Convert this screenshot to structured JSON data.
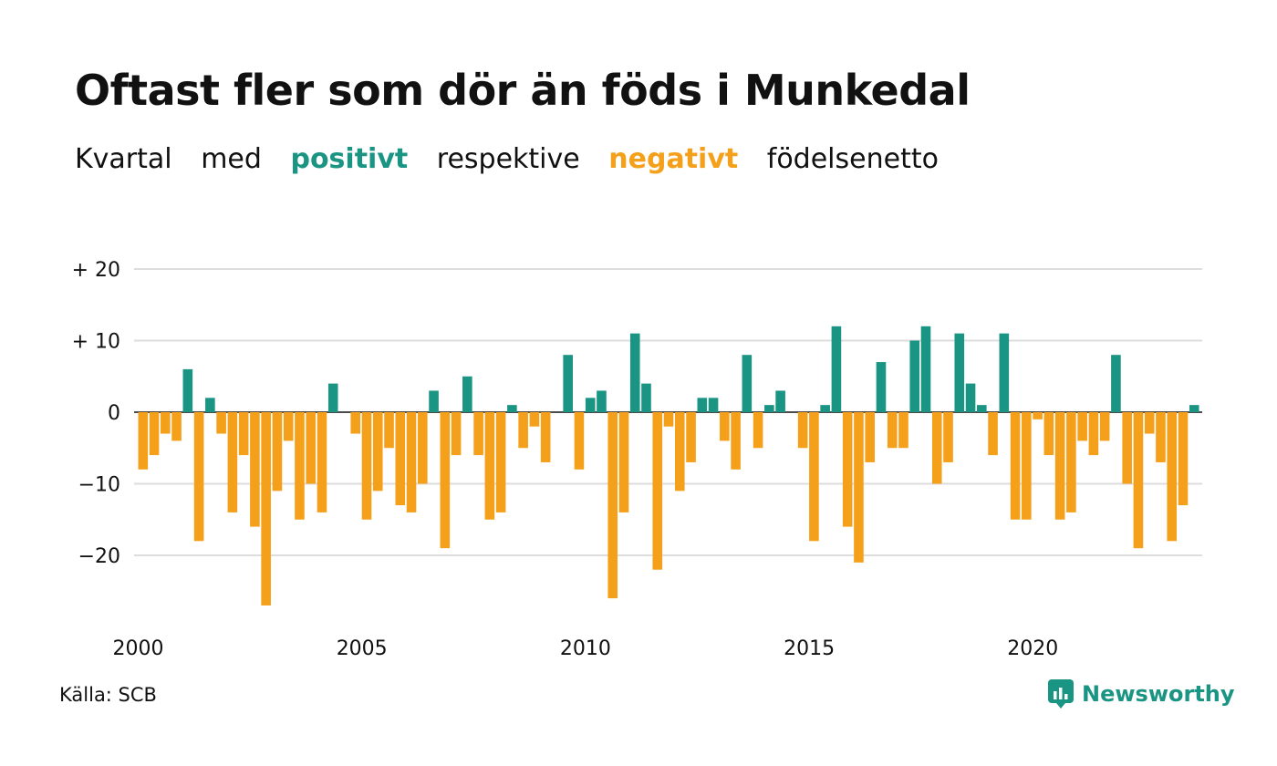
{
  "title": "Oftast fler som dör än föds i Munkedal",
  "subtitle": {
    "part1": "Kvartal",
    "part2": "med",
    "positive": "positivt",
    "part3": "respektive",
    "negative": "negativt",
    "part4": "födelsenetto"
  },
  "colors": {
    "positive": "#1a9483",
    "negative": "#f5a01a",
    "grid": "#dddddd",
    "zero": "#111111"
  },
  "chart_data": {
    "type": "bar",
    "x_start_year": 2000,
    "x_start_quarter": 1,
    "values": [
      -8,
      -6,
      -3,
      -4,
      6,
      -18,
      2,
      -3,
      -14,
      -6,
      -16,
      -27,
      -11,
      -4,
      -15,
      -10,
      -14,
      4,
      0,
      -3,
      -15,
      -11,
      -5,
      -13,
      -14,
      -10,
      3,
      -19,
      -6,
      5,
      -6,
      -15,
      -14,
      1,
      -5,
      -2,
      -7,
      0,
      8,
      -8,
      2,
      3,
      -26,
      -14,
      11,
      4,
      -22,
      -2,
      -11,
      -7,
      2,
      2,
      -4,
      -8,
      8,
      -5,
      1,
      3,
      0,
      -5,
      -18,
      1,
      12,
      -16,
      -21,
      -7,
      7,
      -5,
      -5,
      10,
      12,
      -10,
      -7,
      11,
      4,
      1,
      -6,
      11,
      -15,
      -15,
      -1,
      -6,
      -15,
      -14,
      -4,
      -6,
      -4,
      8,
      -10,
      -19,
      -3,
      -7,
      -18,
      -13,
      1
    ],
    "yticks": [
      20,
      10,
      0,
      -10,
      -20
    ],
    "ytick_labels": [
      "+ 20",
      "+ 10",
      "0",
      "−10",
      "−20"
    ],
    "xticks": [
      2000,
      2005,
      2010,
      2015,
      2020
    ],
    "xtick_labels": [
      "2000",
      "2005",
      "2010",
      "2015",
      "2020"
    ],
    "ylim": [
      -30,
      20
    ],
    "grid": true
  },
  "source": "Källa: SCB",
  "logo": {
    "text": "Newsworthy",
    "icon": "newsworthy-logo-icon"
  }
}
